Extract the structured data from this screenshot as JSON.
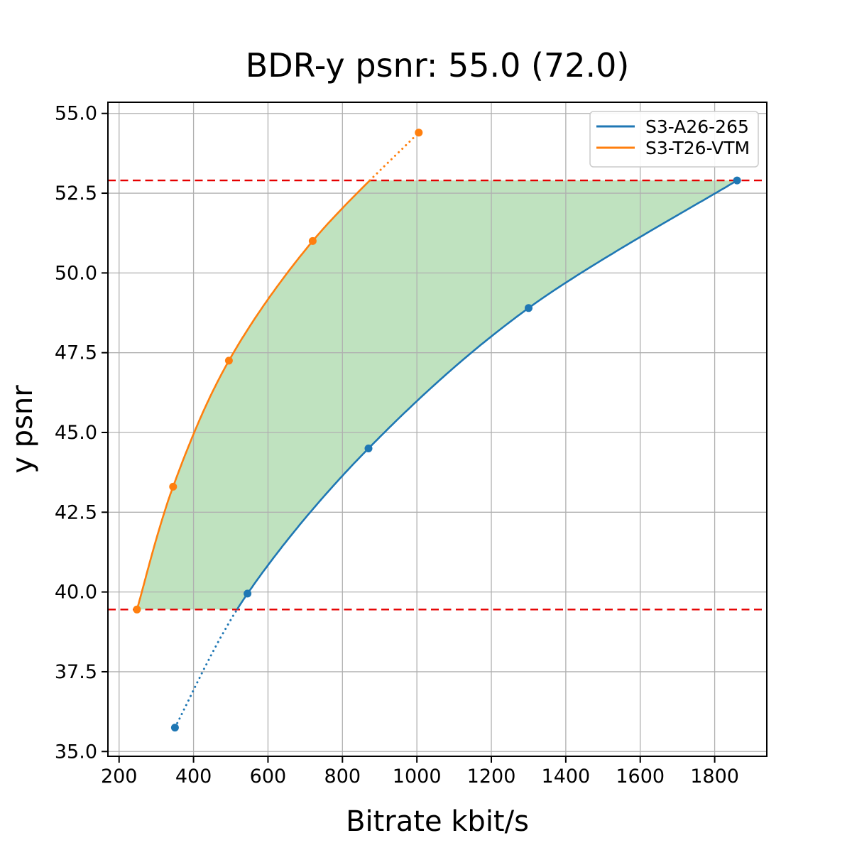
{
  "figure": {
    "title": "BDR-y psnr: 55.0 (72.0)",
    "xlabel": "Bitrate kbit/s",
    "ylabel": "y psnr"
  },
  "legend": {
    "position": "upper-right",
    "entries": [
      {
        "label": "S3-A26-265",
        "color": "#1f77b4"
      },
      {
        "label": "S3-T26-VTM",
        "color": "#ff7f0e"
      }
    ]
  },
  "chart_data": {
    "type": "line",
    "title": "BDR-y psnr: 55.0 (72.0)",
    "xlabel": "Bitrate kbit/s",
    "ylabel": "y psnr",
    "xlim": [
      170,
      1940
    ],
    "ylim": [
      34.85,
      55.35
    ],
    "grid": true,
    "grid_color": "#b0b0b0",
    "background": "#ffffff",
    "legend_position": "upper right",
    "x_ticks": [
      200,
      400,
      600,
      800,
      1000,
      1200,
      1400,
      1600,
      1800
    ],
    "x_tick_labels": [
      "200",
      "400",
      "600",
      "800",
      "1000",
      "1200",
      "1400",
      "1600",
      "1800"
    ],
    "y_ticks": [
      35.0,
      37.5,
      40.0,
      42.5,
      45.0,
      47.5,
      50.0,
      52.5,
      55.0
    ],
    "y_tick_labels": [
      "35.0",
      "37.5",
      "40.0",
      "42.5",
      "45.0",
      "47.5",
      "50.0",
      "52.5",
      "55.0"
    ],
    "series": [
      {
        "name": "S3-A26-265",
        "color": "#1f77b4",
        "x": [
          350,
          545,
          870,
          1300,
          1860
        ],
        "y": [
          35.75,
          39.95,
          44.5,
          48.9,
          52.9
        ],
        "solid_y_range": [
          39.45,
          52.9
        ]
      },
      {
        "name": "S3-T26-VTM",
        "color": "#ff7f0e",
        "x": [
          248,
          345,
          495,
          720,
          1005
        ],
        "y": [
          39.45,
          43.3,
          47.25,
          51.0,
          54.4
        ],
        "solid_y_range": [
          39.45,
          52.9
        ]
      }
    ],
    "reference_lines": [
      {
        "y": 39.45,
        "color": "#e50000",
        "style": "dashed"
      },
      {
        "y": 52.9,
        "color": "#e50000",
        "style": "dashed"
      }
    ],
    "shaded_region": {
      "color": "#2ca02c",
      "opacity": 0.3,
      "between_series": [
        "S3-T26-VTM",
        "S3-A26-265"
      ],
      "y_range": [
        39.45,
        52.9
      ]
    }
  }
}
